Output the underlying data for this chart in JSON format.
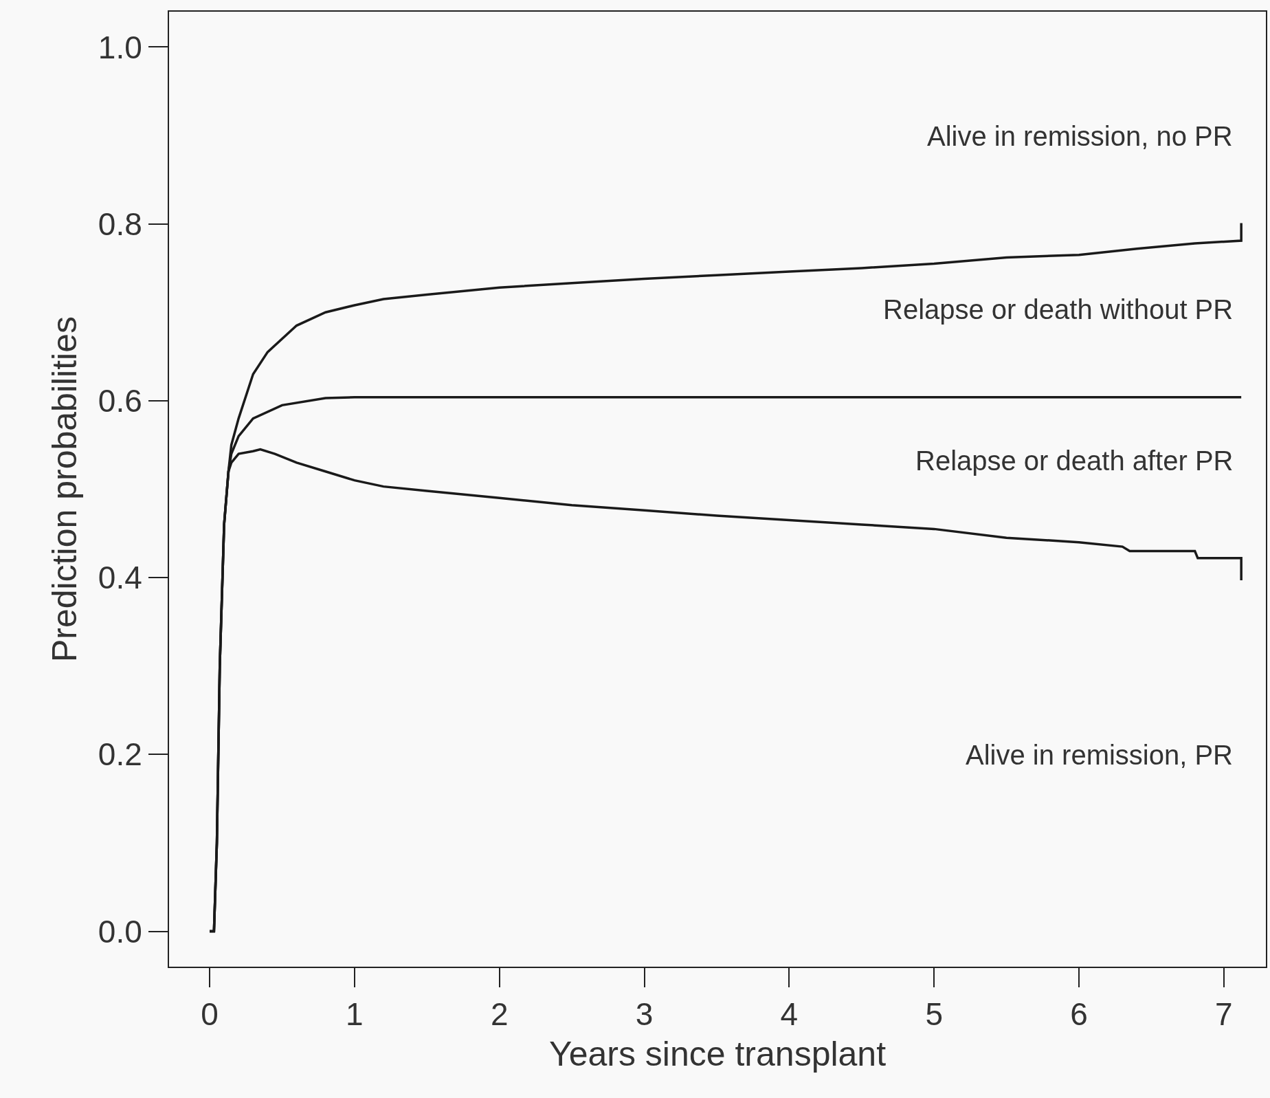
{
  "chart_data": {
    "type": "line",
    "xlabel": "Years since transplant",
    "ylabel": "Prediction probabilities",
    "xlim": [
      -0.28,
      7.29
    ],
    "ylim": [
      -0.04,
      1.04
    ],
    "xticks": [
      0,
      1,
      2,
      3,
      4,
      5,
      6,
      7
    ],
    "yticks": [
      {
        "value": 0,
        "label": "0.0"
      },
      {
        "value": 0.2,
        "label": "0.2"
      },
      {
        "value": 0.4,
        "label": "0.4"
      },
      {
        "value": 0.6,
        "label": "0.6"
      },
      {
        "value": 0.8,
        "label": "0.8"
      },
      {
        "value": 1.0,
        "label": "1.0"
      }
    ],
    "grid": false,
    "marker": "none",
    "line_style": "solid",
    "series": [
      {
        "color": "#1a1a1a",
        "x": [
          0,
          0.03,
          0.05,
          0.07,
          0.1,
          0.13,
          0.15,
          0.2,
          0.3,
          0.35,
          0.45,
          0.6,
          0.8,
          1.0,
          1.2,
          1.5,
          2,
          2.5,
          3,
          3.5,
          4,
          4.5,
          5,
          5.5,
          6,
          6.3,
          6.35,
          6.8,
          6.82,
          7.12,
          7.12
        ],
        "values": [
          0,
          0.0,
          0.1,
          0.3,
          0.46,
          0.52,
          0.53,
          0.54,
          0.543,
          0.545,
          0.54,
          0.53,
          0.52,
          0.51,
          0.503,
          0.498,
          0.49,
          0.482,
          0.476,
          0.47,
          0.465,
          0.46,
          0.455,
          0.445,
          0.44,
          0.435,
          0.43,
          0.43,
          0.422,
          0.422,
          0.397
        ]
      },
      {
        "color": "#1a1a1a",
        "x": [
          0,
          0.03,
          0.05,
          0.07,
          0.1,
          0.13,
          0.15,
          0.2,
          0.3,
          0.5,
          0.8,
          1.0,
          7.12
        ],
        "values": [
          0,
          0.0,
          0.1,
          0.3,
          0.46,
          0.52,
          0.54,
          0.56,
          0.58,
          0.595,
          0.603,
          0.604,
          0.604
        ]
      },
      {
        "color": "#1a1a1a",
        "x": [
          0,
          0.03,
          0.05,
          0.07,
          0.1,
          0.13,
          0.15,
          0.2,
          0.3,
          0.4,
          0.6,
          0.8,
          1.0,
          1.2,
          1.5,
          2,
          2.5,
          3,
          3.5,
          4,
          4.5,
          5,
          5.5,
          6,
          6.4,
          6.8,
          7.12,
          7.12
        ],
        "values": [
          0,
          0.0,
          0.1,
          0.3,
          0.46,
          0.52,
          0.55,
          0.58,
          0.63,
          0.655,
          0.685,
          0.7,
          0.708,
          0.715,
          0.72,
          0.728,
          0.733,
          0.738,
          0.742,
          0.746,
          0.75,
          0.755,
          0.762,
          0.765,
          0.772,
          0.778,
          0.781,
          0.801
        ]
      }
    ],
    "annotations": [
      "Alive in remission, no PR",
      "Relapse or death without PR",
      "Relapse or death after PR",
      "Alive in remission, PR"
    ]
  }
}
